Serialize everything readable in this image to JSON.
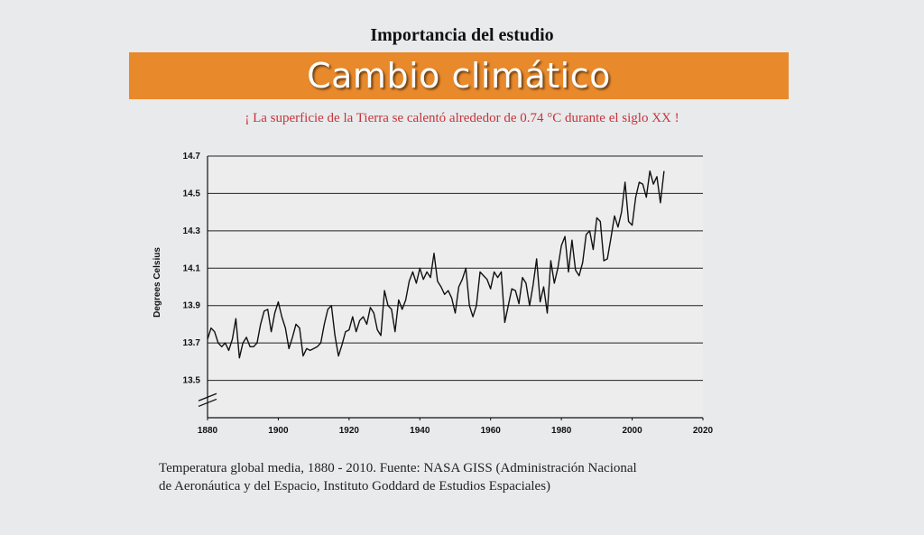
{
  "header": {
    "subtitle": "Importancia del estudio",
    "banner_title": "Cambio climático",
    "tagline": "¡ La superficie de la Tierra se calentó alrededor de 0.74 °C durante el siglo XX !"
  },
  "caption": {
    "line1": "Temperatura global media, 1880 - 2010. Fuente: NASA GISS (Administración Nacional",
    "line2": "de Aeronáutica y del Espacio, Instituto Goddard de Estudios Espaciales)"
  },
  "colors": {
    "banner": "#e8892b",
    "tagline": "#c8323a",
    "line": "#111111"
  },
  "chart_data": {
    "type": "line",
    "title": "",
    "xlabel": "",
    "ylabel": "Degrees Celsius",
    "xlim": [
      1880,
      2020
    ],
    "ylim": [
      13.3,
      14.7
    ],
    "x_ticks": [
      "1880",
      "1900",
      "1920",
      "1940",
      "1960",
      "1980",
      "2000",
      "2020"
    ],
    "y_ticks": [
      "14.7",
      "14.5",
      "14.3",
      "14.1",
      "13.9",
      "13.7",
      "13.5"
    ],
    "grid": "horizontal",
    "axis_break": true,
    "series": [
      {
        "x": [
          1880,
          1881,
          1882,
          1883,
          1884,
          1885,
          1886,
          1887,
          1888,
          1889,
          1890,
          1891,
          1892,
          1893,
          1894,
          1895,
          1896,
          1897,
          1898,
          1899,
          1900,
          1901,
          1902,
          1903,
          1904,
          1905,
          1906,
          1907,
          1908,
          1909,
          1910,
          1911,
          1912,
          1913,
          1914,
          1915,
          1916,
          1917,
          1918,
          1919,
          1920,
          1921,
          1922,
          1923,
          1924,
          1925,
          1926,
          1927,
          1928,
          1929,
          1930,
          1931,
          1932,
          1933,
          1934,
          1935,
          1936,
          1937,
          1938,
          1939,
          1940,
          1941,
          1942,
          1943,
          1944,
          1945,
          1946,
          1947,
          1948,
          1949,
          1950,
          1951,
          1952,
          1953,
          1954,
          1955,
          1956,
          1957,
          1958,
          1959,
          1960,
          1961,
          1962,
          1963,
          1964,
          1965,
          1966,
          1967,
          1968,
          1969,
          1970,
          1971,
          1972,
          1973,
          1974,
          1975,
          1976,
          1977,
          1978,
          1979,
          1980,
          1981,
          1982,
          1983,
          1984,
          1985,
          1986,
          1987,
          1988,
          1989,
          1990,
          1991,
          1992,
          1993,
          1994,
          1995,
          1996,
          1997,
          1998,
          1999,
          2000,
          2001,
          2002,
          2003,
          2004,
          2005,
          2006,
          2007,
          2008,
          2009
        ],
        "values": [
          13.72,
          13.78,
          13.76,
          13.7,
          13.68,
          13.7,
          13.66,
          13.72,
          13.83,
          13.62,
          13.7,
          13.73,
          13.68,
          13.68,
          13.7,
          13.8,
          13.87,
          13.88,
          13.76,
          13.86,
          13.92,
          13.84,
          13.78,
          13.67,
          13.73,
          13.8,
          13.78,
          13.63,
          13.67,
          13.66,
          13.67,
          13.68,
          13.7,
          13.8,
          13.88,
          13.9,
          13.74,
          13.63,
          13.69,
          13.76,
          13.77,
          13.84,
          13.76,
          13.82,
          13.84,
          13.8,
          13.89,
          13.86,
          13.77,
          13.74,
          13.98,
          13.9,
          13.88,
          13.76,
          13.93,
          13.88,
          13.93,
          14.03,
          14.08,
          14.02,
          14.1,
          14.04,
          14.08,
          14.05,
          14.18,
          14.03,
          14.0,
          13.96,
          13.98,
          13.94,
          13.86,
          14.0,
          14.04,
          14.1,
          13.9,
          13.84,
          13.9,
          14.08,
          14.06,
          14.04,
          13.99,
          14.08,
          14.05,
          14.08,
          13.81,
          13.9,
          13.99,
          13.98,
          13.91,
          14.05,
          14.02,
          13.9,
          14.01,
          14.15,
          13.92,
          14.0,
          13.86,
          14.14,
          14.02,
          14.1,
          14.22,
          14.27,
          14.08,
          14.25,
          14.09,
          14.06,
          14.13,
          14.28,
          14.3,
          14.2,
          14.37,
          14.35,
          14.14,
          14.15,
          14.26,
          14.38,
          14.32,
          14.4,
          14.56,
          14.35,
          14.33,
          14.48,
          14.56,
          14.55,
          14.48,
          14.62,
          14.55,
          14.59,
          14.45,
          14.62
        ]
      }
    ]
  }
}
